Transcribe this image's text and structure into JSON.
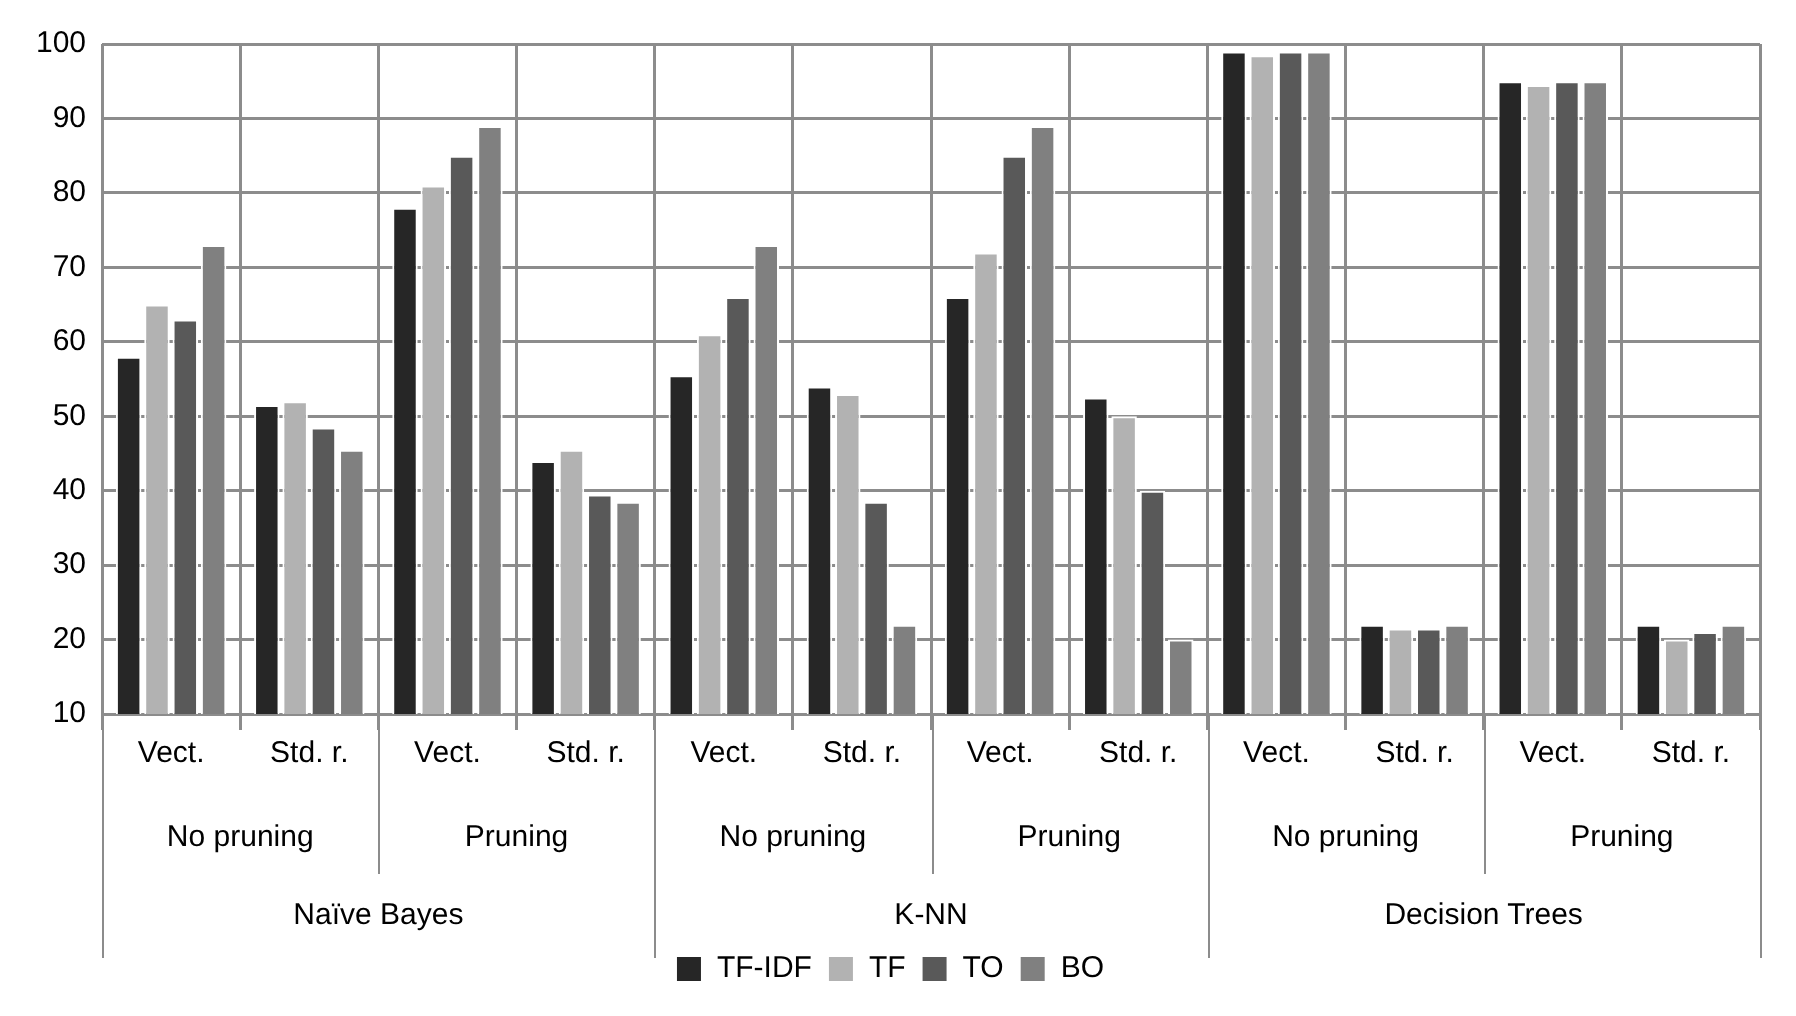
{
  "chart_data": {
    "type": "bar",
    "categories": [
      "Vect.",
      "Std. r.",
      "Vect.",
      "Std. r.",
      "Vect.",
      "Std. r.",
      "Vect.",
      "Std. r.",
      "Vect.",
      "Std. r.",
      "Vect.",
      "Std. r."
    ],
    "annotations": [
      "No pruning",
      "Pruning",
      "No pruning",
      "Pruning",
      "No pruning",
      "Pruning",
      "Naïve Bayes",
      "K-NN",
      "Decision Trees"
    ],
    "series": [
      {
        "name": "TF-IDF",
        "color": "#262626",
        "values": [
          58,
          51.5,
          78,
          44,
          55.5,
          54,
          66,
          52.5,
          99,
          22,
          95,
          22
        ]
      },
      {
        "name": "TF",
        "color": "#b2b2b2",
        "values": [
          65,
          52,
          81,
          45.5,
          61,
          53,
          72,
          50,
          98.5,
          21.5,
          94.5,
          20
        ]
      },
      {
        "name": "TO",
        "color": "#595959",
        "values": [
          63,
          48.5,
          85,
          39.5,
          66,
          38.5,
          85,
          40,
          99,
          21.5,
          95,
          21
        ]
      },
      {
        "name": "BO",
        "color": "#808080",
        "values": [
          73,
          45.5,
          89,
          38.5,
          73,
          22,
          89,
          20,
          99,
          22,
          95,
          22
        ]
      }
    ],
    "ylim": [
      10,
      100
    ],
    "yticks": [
      10,
      20,
      30,
      40,
      50,
      60,
      70,
      80,
      90,
      100
    ],
    "grid": true,
    "legend": "bottom"
  }
}
